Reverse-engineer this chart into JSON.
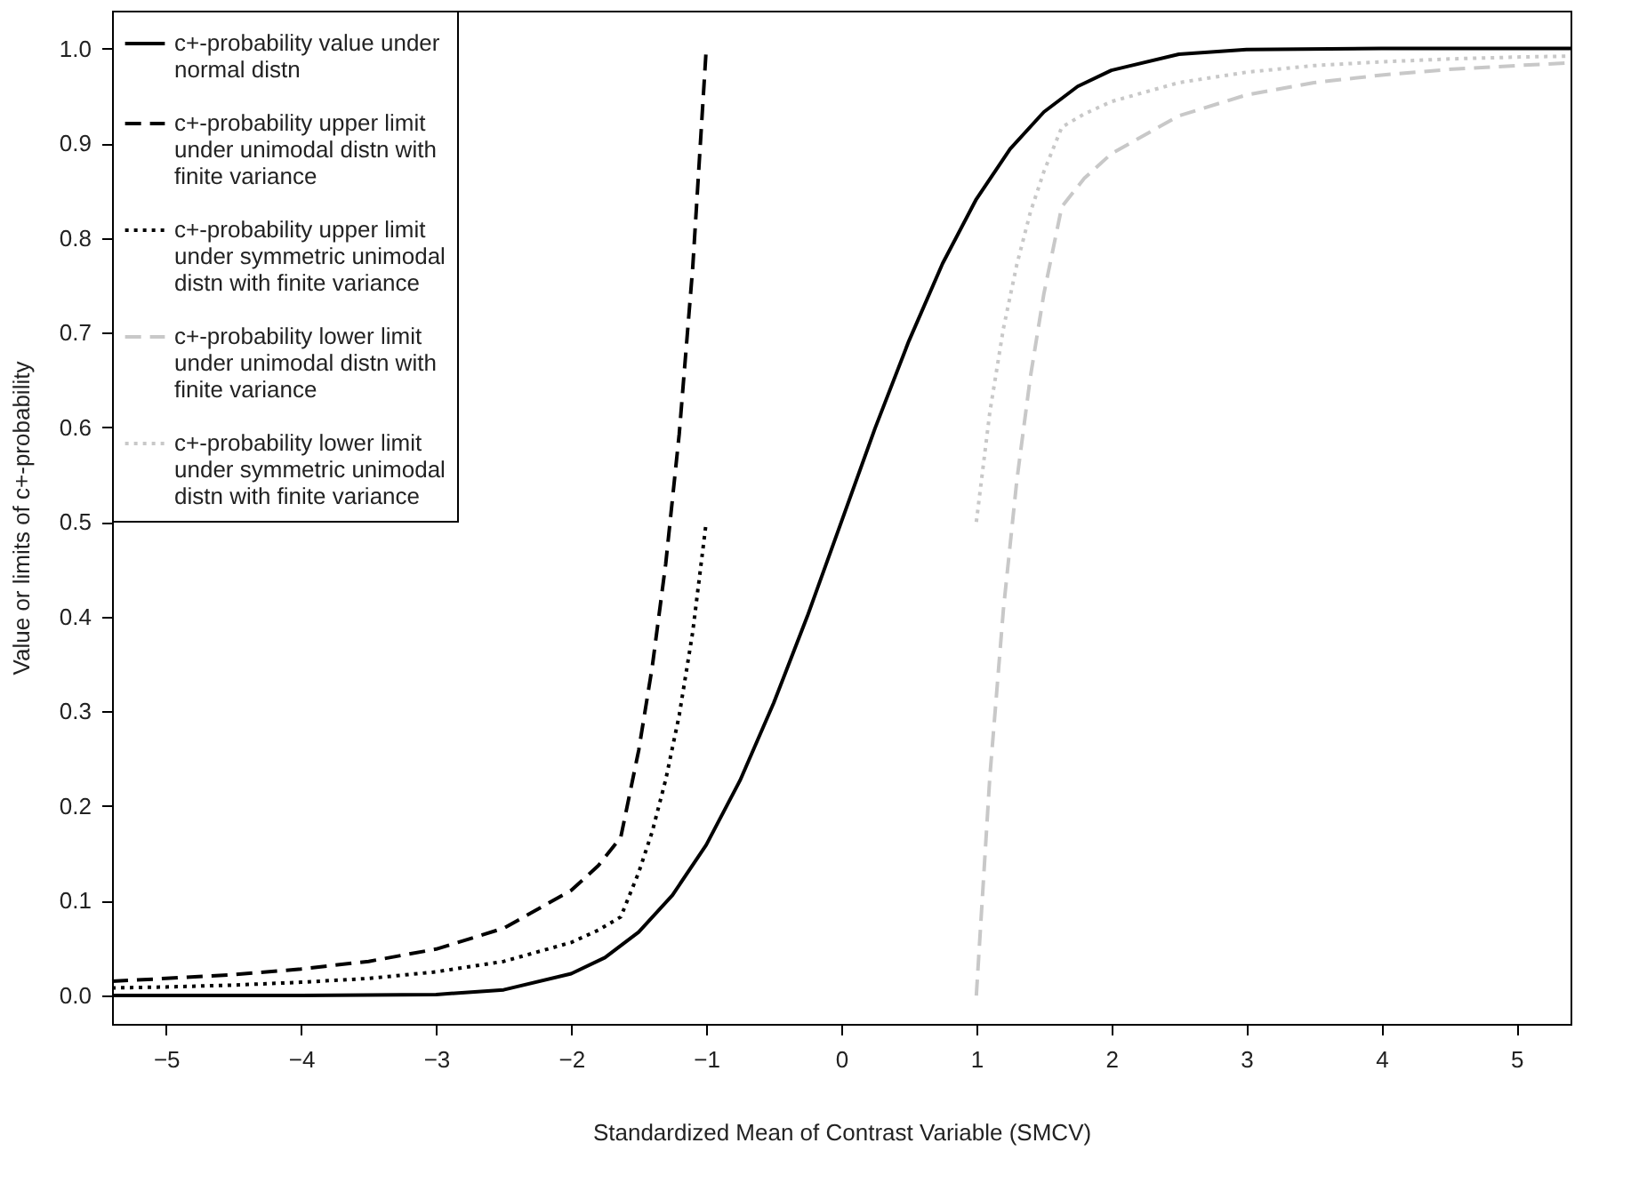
{
  "chart_data": {
    "type": "line",
    "xlabel": "Standardized Mean of Contrast Variable (SMCV)",
    "ylabel": "Value or limits of c+-probability",
    "xlim": [
      -5.4,
      5.4
    ],
    "xticks": [
      -5,
      -4,
      -3,
      -2,
      -1,
      0,
      1,
      2,
      3,
      4,
      5
    ],
    "ylim": [
      -0.03,
      1.04
    ],
    "yticks": [
      {
        "value": 0,
        "label": "0.0"
      },
      0.1,
      0.2,
      0.3,
      0.4,
      0.5,
      0.6,
      0.7,
      0.8,
      0.9,
      {
        "value": 1,
        "label": "1.0"
      }
    ],
    "grid": false,
    "legend": "top left",
    "marker": "none",
    "series": [
      {
        "name": "c+-probability value under normal distn",
        "color": "#000000",
        "line_style": "solid",
        "x": [
          -5.4,
          -4,
          -3,
          -2.5,
          -2,
          -1.75,
          -1.5,
          -1.25,
          -1,
          -0.75,
          -0.5,
          -0.25,
          0,
          0.25,
          0.5,
          0.75,
          1,
          1.25,
          1.5,
          1.75,
          2,
          2.5,
          3,
          4,
          5.4
        ],
        "values": [
          0.0,
          0.0,
          0.001,
          0.006,
          0.023,
          0.04,
          0.067,
          0.106,
          0.159,
          0.227,
          0.309,
          0.401,
          0.5,
          0.599,
          0.691,
          0.773,
          0.841,
          0.894,
          0.933,
          0.96,
          0.977,
          0.994,
          0.999,
          1.0,
          1.0
        ]
      },
      {
        "name": "c+-probability upper limit under unimodal distn with finite variance",
        "color": "#000000",
        "line_style": "dashed",
        "x": [
          -5.4,
          -5,
          -4.5,
          -4,
          -3.5,
          -3,
          -2.5,
          -2,
          -1.8,
          -1.633,
          -1.5,
          -1.4,
          -1.3,
          -1.2,
          -1.1,
          -1.0
        ],
        "values": [
          0.015,
          0.018,
          0.022,
          0.028,
          0.036,
          0.049,
          0.071,
          0.111,
          0.137,
          0.167,
          0.259,
          0.347,
          0.456,
          0.593,
          0.769,
          1.0
        ]
      },
      {
        "name": "c+-probability upper limit under symmetric unimodal distn with finite variance",
        "color": "#000000",
        "line_style": "dotted",
        "x": [
          -5.4,
          -5,
          -4.5,
          -4,
          -3.5,
          -3,
          -2.5,
          -2,
          -1.8,
          -1.633,
          -1.5,
          -1.4,
          -1.3,
          -1.2,
          -1.1,
          -1.0
        ],
        "values": [
          0.008,
          0.009,
          0.011,
          0.014,
          0.018,
          0.025,
          0.036,
          0.056,
          0.069,
          0.083,
          0.13,
          0.173,
          0.228,
          0.296,
          0.384,
          0.5
        ]
      },
      {
        "name": "c+-probability lower limit under unimodal distn with finite variance",
        "color": "#c8c8c8",
        "line_style": "dashed",
        "x": [
          1.0,
          1.1,
          1.2,
          1.3,
          1.4,
          1.5,
          1.633,
          1.8,
          2,
          2.5,
          3,
          3.5,
          4,
          4.5,
          5,
          5.4
        ],
        "values": [
          0.0,
          0.231,
          0.407,
          0.544,
          0.653,
          0.741,
          0.833,
          0.863,
          0.889,
          0.929,
          0.951,
          0.964,
          0.972,
          0.978,
          0.982,
          0.985
        ]
      },
      {
        "name": "c+-probability lower limit under symmetric unimodal distn with finite variance",
        "color": "#c8c8c8",
        "line_style": "dotted",
        "x": [
          1.0,
          1.1,
          1.2,
          1.3,
          1.4,
          1.5,
          1.633,
          1.8,
          2,
          2.5,
          3,
          3.5,
          4,
          4.5,
          5,
          5.4
        ],
        "values": [
          0.5,
          0.616,
          0.704,
          0.772,
          0.827,
          0.87,
          0.917,
          0.931,
          0.944,
          0.964,
          0.975,
          0.982,
          0.986,
          0.989,
          0.991,
          0.992
        ]
      }
    ]
  }
}
